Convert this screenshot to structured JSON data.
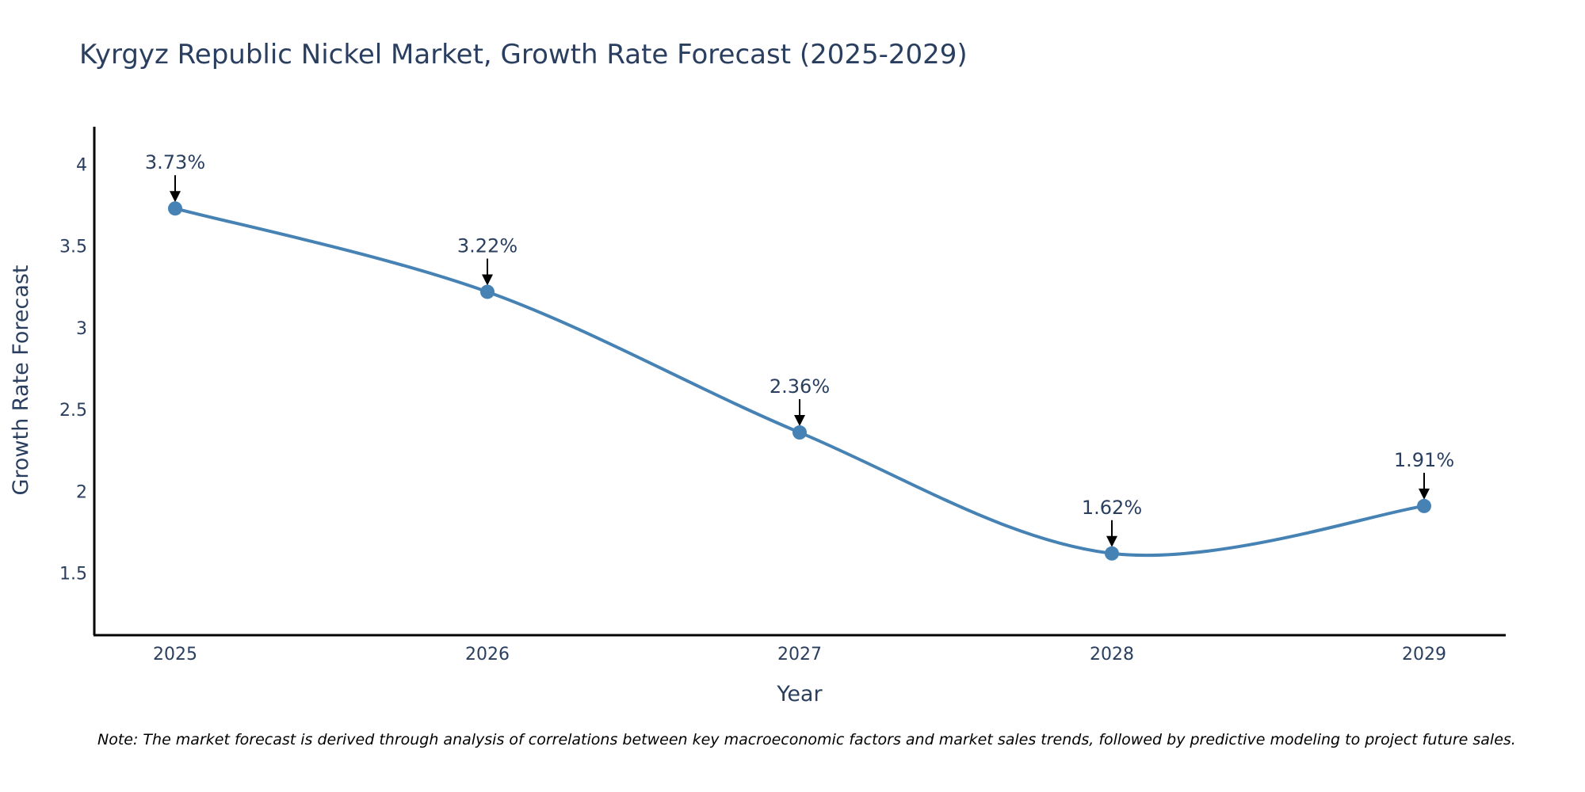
{
  "chart_data": {
    "type": "line",
    "title": "Kyrgyz Republic Nickel Market, Growth Rate Forecast (2025-2029)",
    "xlabel": "Year",
    "ylabel": "Growth Rate Forecast",
    "categories": [
      "2025",
      "2026",
      "2027",
      "2028",
      "2029"
    ],
    "series": [
      {
        "name": "Growth Rate Forecast",
        "values": [
          3.73,
          3.22,
          2.36,
          1.62,
          1.91
        ],
        "labels": [
          "3.73%",
          "3.22%",
          "2.36%",
          "1.62%",
          "1.91%"
        ]
      }
    ],
    "ylim": [
      1.12,
      4.23
    ],
    "yticks": [
      1.5,
      2,
      2.5,
      3,
      3.5,
      4
    ],
    "ytick_labels": [
      "1.5",
      "2",
      "2.5",
      "3",
      "3.5",
      "4"
    ],
    "grid": false,
    "line_color": "#4682b4",
    "marker_color": "#4682b4",
    "note": "Note: The market forecast is derived through analysis of correlations between key macroeconomic factors and market sales trends, followed by predictive modeling to project future sales."
  }
}
